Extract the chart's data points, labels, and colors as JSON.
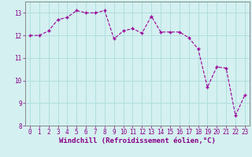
{
  "x": [
    0,
    1,
    2,
    3,
    4,
    5,
    6,
    7,
    8,
    9,
    10,
    11,
    12,
    13,
    14,
    15,
    16,
    17,
    18,
    19,
    20,
    21,
    22,
    23
  ],
  "y": [
    12.0,
    12.0,
    12.2,
    12.7,
    12.8,
    13.1,
    13.0,
    13.0,
    13.1,
    11.85,
    12.2,
    12.3,
    12.1,
    12.85,
    12.15,
    12.15,
    12.15,
    11.9,
    11.4,
    9.7,
    10.6,
    10.55,
    8.45,
    9.35
  ],
  "line_color": "#990099",
  "marker": "+",
  "bg_color": "#d4f0f0",
  "grid_color": "#b0dede",
  "xlabel": "Windchill (Refroidissement éolien,°C)",
  "xlim": [
    -0.5,
    23.5
  ],
  "ylim": [
    8,
    13.5
  ],
  "yticks": [
    8,
    9,
    10,
    11,
    12,
    13
  ],
  "xticks": [
    0,
    1,
    2,
    3,
    4,
    5,
    6,
    7,
    8,
    9,
    10,
    11,
    12,
    13,
    14,
    15,
    16,
    17,
    18,
    19,
    20,
    21,
    22,
    23
  ],
  "tick_color": "#880088",
  "label_color": "#880088",
  "tick_fontsize": 5.5,
  "xlabel_fontsize": 6.5,
  "spine_color": "#888888"
}
